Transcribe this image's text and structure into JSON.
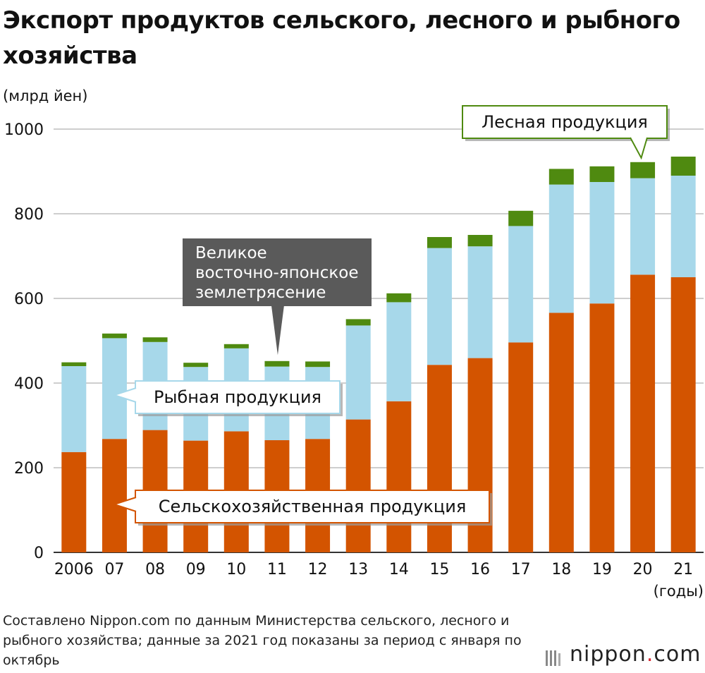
{
  "title": "Экспорт продуктов сельского, лесного и рыбного хозяйства",
  "unit_label": "(млрд йен)",
  "x_unit_label": "(годы)",
  "source": "Составлено Nippon.com по данным Министерства сельского, лесного и рыбного хозяйства; данные за 2021 год показаны за период с января по октябрь",
  "logo": {
    "name": "nippon",
    "dot": ".",
    "domain": "com"
  },
  "callouts": {
    "forest": "Лесная продукция",
    "fish": "Рыбная продукция",
    "agri": "Сельскохозяйственная продукция",
    "quake_lines": [
      "Великое",
      "восточно-японское",
      "землетрясение"
    ]
  },
  "colors": {
    "agri": "#d35400",
    "fish": "#a7d8ea",
    "forest": "#4f8a10",
    "grid": "#bdbdbd",
    "quake_box": "#5a5a5a"
  },
  "chart_data": {
    "type": "bar",
    "stacked": true,
    "categories": [
      "2006",
      "07",
      "08",
      "09",
      "10",
      "11",
      "12",
      "13",
      "14",
      "15",
      "16",
      "17",
      "18",
      "19",
      "20",
      "21"
    ],
    "series": [
      {
        "name": "Сельскохозяйственная продукция",
        "values": [
          237,
          268,
          289,
          264,
          286,
          265,
          268,
          314,
          357,
          443,
          459,
          496,
          566,
          588,
          656,
          650
        ]
      },
      {
        "name": "Рыбная продукция",
        "values": [
          203,
          238,
          208,
          174,
          196,
          174,
          170,
          222,
          234,
          276,
          264,
          275,
          303,
          287,
          228,
          240
        ]
      },
      {
        "name": "Лесная продукция",
        "values": [
          9,
          11,
          11,
          10,
          10,
          13,
          13,
          15,
          21,
          26,
          27,
          36,
          37,
          37,
          38,
          45
        ]
      }
    ],
    "ylim": [
      0,
      1000
    ],
    "yticks": [
      0,
      200,
      400,
      600,
      800,
      1000
    ],
    "grid": true
  }
}
